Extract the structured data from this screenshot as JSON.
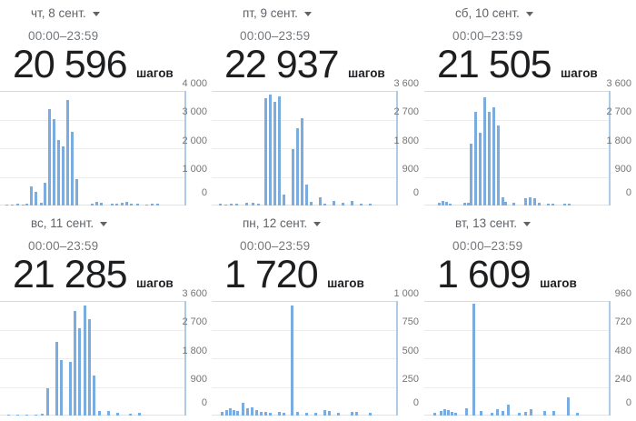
{
  "unit": "шагов",
  "colors": {
    "bar": "#7aace0",
    "axis_line": "#adcbe4",
    "gridline": "#ececec",
    "date_text": "#5f6368",
    "time_text": "#73777b",
    "number_text": "#1d1e20",
    "tick_text": "#757575"
  },
  "panels": [
    {
      "date_label": "чт, 8 сент.",
      "time_range": "00:00–23:59",
      "steps": "20 596",
      "ymax": 4000,
      "ticks": [
        "4 000",
        "3 000",
        "2 000",
        "1 000",
        "0"
      ],
      "chart_type": "bar",
      "bars": [
        [
          6,
          40
        ],
        [
          12,
          35
        ],
        [
          18,
          50
        ],
        [
          24,
          45
        ],
        [
          28,
          60
        ],
        [
          33,
          680
        ],
        [
          38,
          490
        ],
        [
          44,
          90
        ],
        [
          48,
          790
        ],
        [
          53,
          3350
        ],
        [
          58,
          3020
        ],
        [
          63,
          2280
        ],
        [
          68,
          2060
        ],
        [
          73,
          3680
        ],
        [
          78,
          2580
        ],
        [
          83,
          935
        ],
        [
          100,
          70
        ],
        [
          105,
          130
        ],
        [
          110,
          90
        ],
        [
          122,
          60
        ],
        [
          127,
          55
        ],
        [
          133,
          110
        ],
        [
          138,
          120
        ],
        [
          143,
          60
        ],
        [
          150,
          50
        ],
        [
          160,
          45
        ],
        [
          166,
          55
        ],
        [
          172,
          50
        ]
      ]
    },
    {
      "date_label": "пт, 9 сент.",
      "time_range": "00:00–23:59",
      "steps": "22 937",
      "ymax": 3600,
      "ticks": [
        "3 600",
        "2 700",
        "1 800",
        "900",
        "0"
      ],
      "chart_type": "bar",
      "bars": [
        [
          8,
          50
        ],
        [
          14,
          40
        ],
        [
          20,
          60
        ],
        [
          26,
          45
        ],
        [
          37,
          100
        ],
        [
          44,
          80
        ],
        [
          50,
          60
        ],
        [
          58,
          3380
        ],
        [
          63,
          3480
        ],
        [
          68,
          3260
        ],
        [
          73,
          3430
        ],
        [
          78,
          330
        ],
        [
          88,
          1760
        ],
        [
          93,
          2430
        ],
        [
          98,
          2750
        ],
        [
          103,
          650
        ],
        [
          108,
          120
        ],
        [
          118,
          260
        ],
        [
          123,
          70
        ],
        [
          133,
          150
        ],
        [
          143,
          90
        ],
        [
          153,
          130
        ],
        [
          163,
          60
        ],
        [
          173,
          45
        ]
      ]
    },
    {
      "date_label": "сб, 10 сент.",
      "time_range": "00:00–23:59",
      "steps": "21 505",
      "ymax": 3600,
      "ticks": [
        "3 600",
        "2 700",
        "1 800",
        "900",
        "0"
      ],
      "chart_type": "bar",
      "bars": [
        [
          15,
          90
        ],
        [
          19,
          140
        ],
        [
          23,
          120
        ],
        [
          27,
          70
        ],
        [
          43,
          90
        ],
        [
          47,
          100
        ],
        [
          50,
          1950
        ],
        [
          55,
          2950
        ],
        [
          60,
          2280
        ],
        [
          65,
          3400
        ],
        [
          70,
          2950
        ],
        [
          75,
          3100
        ],
        [
          80,
          2520
        ],
        [
          85,
          250
        ],
        [
          88,
          120
        ],
        [
          97,
          90
        ],
        [
          110,
          230
        ],
        [
          115,
          250
        ],
        [
          120,
          230
        ],
        [
          125,
          100
        ],
        [
          135,
          60
        ],
        [
          140,
          55
        ],
        [
          153,
          60
        ],
        [
          158,
          50
        ]
      ]
    },
    {
      "date_label": "вс, 11 сент.",
      "time_range": "00:00–23:59",
      "steps": "21 285",
      "ymax": 3600,
      "ticks": [
        "3 600",
        "2 700",
        "1 800",
        "900",
        "0"
      ],
      "chart_type": "bar",
      "bars": [
        [
          8,
          30
        ],
        [
          18,
          40
        ],
        [
          28,
          35
        ],
        [
          38,
          30
        ],
        [
          45,
          60
        ],
        [
          51,
          870
        ],
        [
          61,
          2320
        ],
        [
          66,
          1740
        ],
        [
          76,
          1700
        ],
        [
          81,
          3280
        ],
        [
          86,
          2730
        ],
        [
          92,
          3450
        ],
        [
          97,
          3020
        ],
        [
          102,
          1250
        ],
        [
          108,
          130
        ],
        [
          118,
          150
        ],
        [
          128,
          100
        ],
        [
          142,
          60
        ],
        [
          152,
          90
        ]
      ]
    },
    {
      "date_label": "пн, 12 сент.",
      "time_range": "00:00–23:59",
      "steps": "1 720",
      "ymax": 1000,
      "ticks": [
        "1 000",
        "750",
        "500",
        "250",
        "0"
      ],
      "chart_type": "bar",
      "bars": [
        [
          10,
          30
        ],
        [
          15,
          45
        ],
        [
          19,
          60
        ],
        [
          23,
          50
        ],
        [
          27,
          40
        ],
        [
          33,
          110
        ],
        [
          38,
          60
        ],
        [
          43,
          70
        ],
        [
          48,
          45
        ],
        [
          53,
          35
        ],
        [
          58,
          30
        ],
        [
          63,
          25
        ],
        [
          73,
          30
        ],
        [
          78,
          25
        ],
        [
          87,
          960
        ],
        [
          93,
          30
        ],
        [
          103,
          25
        ],
        [
          113,
          20
        ],
        [
          123,
          45
        ],
        [
          128,
          40
        ],
        [
          138,
          20
        ],
        [
          153,
          35
        ],
        [
          158,
          30
        ],
        [
          173,
          20
        ]
      ]
    },
    {
      "date_label": "вт, 13 сент.",
      "time_range": "00:00–23:59",
      "steps": "1 609",
      "ymax": 960,
      "ticks": [
        "960",
        "720",
        "480",
        "240",
        "0"
      ],
      "chart_type": "bar",
      "bars": [
        [
          10,
          20
        ],
        [
          17,
          40
        ],
        [
          21,
          50
        ],
        [
          25,
          45
        ],
        [
          29,
          30
        ],
        [
          33,
          25
        ],
        [
          45,
          60
        ],
        [
          53,
          940
        ],
        [
          61,
          35
        ],
        [
          73,
          25
        ],
        [
          79,
          50
        ],
        [
          85,
          40
        ],
        [
          91,
          90
        ],
        [
          103,
          20
        ],
        [
          110,
          30
        ],
        [
          116,
          55
        ],
        [
          131,
          35
        ],
        [
          141,
          40
        ],
        [
          157,
          150
        ],
        [
          167,
          25
        ]
      ]
    }
  ]
}
